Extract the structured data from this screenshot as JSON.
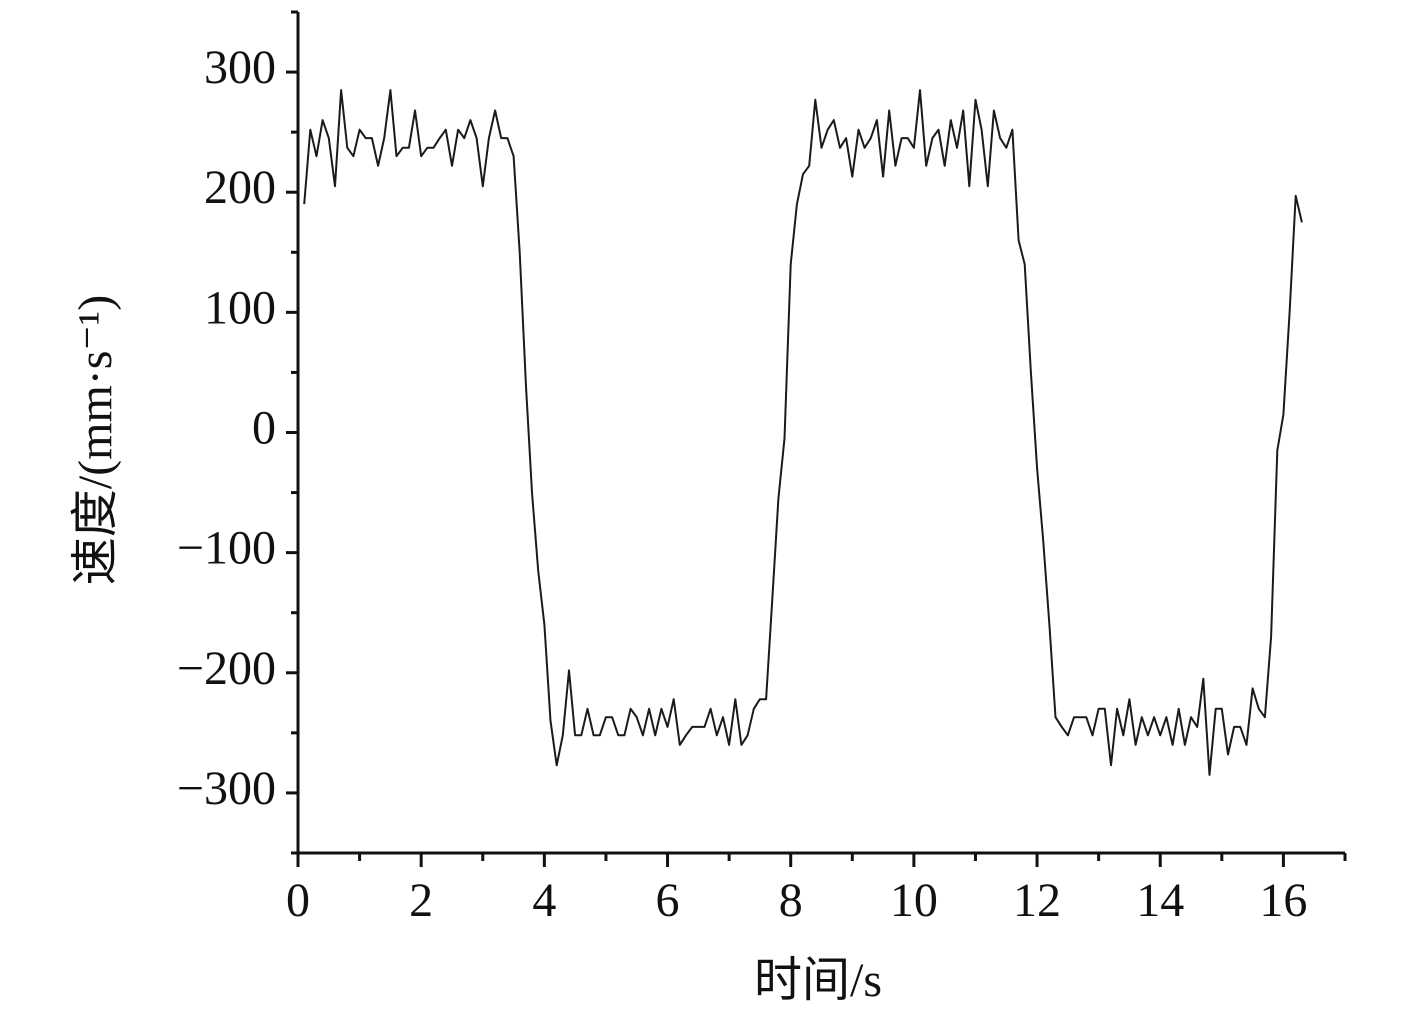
{
  "chart_data": {
    "type": "line",
    "xlabel": "时间/s",
    "ylabel": "速度/(mm·s⁻¹)",
    "xlim": [
      0,
      17
    ],
    "ylim": [
      -350,
      350
    ],
    "xticks": [
      0,
      2,
      4,
      6,
      8,
      10,
      12,
      14,
      16
    ],
    "xminorticks": [
      1,
      3,
      5,
      7,
      9,
      11,
      13,
      15,
      17
    ],
    "yticks": [
      {
        "value": -300,
        "label": "−300"
      },
      {
        "value": -200,
        "label": "−200"
      },
      {
        "value": -100,
        "label": "−100"
      },
      0,
      100,
      200,
      300
    ],
    "yminorticks": [
      -350,
      -250,
      -150,
      -50,
      50,
      150,
      250,
      350
    ],
    "color": "#1a1a1a",
    "x": [
      0.1,
      0.2,
      0.3,
      0.4,
      0.5,
      0.6,
      0.7,
      0.8,
      0.9,
      1.0,
      1.1,
      1.2,
      1.3,
      1.4,
      1.5,
      1.6,
      1.7,
      1.8,
      1.9,
      2.0,
      2.1,
      2.2,
      2.3,
      2.4,
      2.5,
      2.6,
      2.7,
      2.8,
      2.9,
      3.0,
      3.1,
      3.2,
      3.3,
      3.4,
      3.5,
      3.6,
      3.7,
      3.8,
      3.9,
      4.0,
      4.1,
      4.2,
      4.3,
      4.4,
      4.5,
      4.6,
      4.7,
      4.8,
      4.9,
      5.0,
      5.1,
      5.2,
      5.3,
      5.4,
      5.5,
      5.6,
      5.7,
      5.8,
      5.9,
      6.0,
      6.1,
      6.2,
      6.3,
      6.4,
      6.5,
      6.6,
      6.7,
      6.8,
      6.9,
      7.0,
      7.1,
      7.2,
      7.3,
      7.4,
      7.5,
      7.6,
      7.7,
      7.8,
      7.9,
      8.0,
      8.1,
      8.2,
      8.3,
      8.4,
      8.5,
      8.6,
      8.7,
      8.8,
      8.9,
      9.0,
      9.1,
      9.2,
      9.3,
      9.4,
      9.5,
      9.6,
      9.7,
      9.8,
      9.9,
      10.0,
      10.1,
      10.2,
      10.3,
      10.4,
      10.5,
      10.6,
      10.7,
      10.8,
      10.9,
      11.0,
      11.1,
      11.2,
      11.3,
      11.4,
      11.5,
      11.6,
      11.7,
      11.8,
      11.9,
      12.0,
      12.1,
      12.2,
      12.3,
      12.4,
      12.5,
      12.6,
      12.7,
      12.8,
      12.9,
      13.0,
      13.1,
      13.2,
      13.3,
      13.4,
      13.5,
      13.6,
      13.7,
      13.8,
      13.9,
      14.0,
      14.1,
      14.2,
      14.3,
      14.4,
      14.5,
      14.6,
      14.7,
      14.8,
      14.9,
      15.0,
      15.1,
      15.2,
      15.3,
      15.4,
      15.5,
      15.6,
      15.7,
      15.8,
      15.9,
      16.0,
      16.1,
      16.2,
      16.3
    ],
    "values": [
      190,
      252,
      230,
      260,
      245,
      205,
      285,
      237,
      230,
      252,
      245,
      245,
      222,
      245,
      285,
      230,
      237,
      237,
      268,
      230,
      237,
      237,
      245,
      252,
      222,
      252,
      245,
      260,
      245,
      205,
      245,
      268,
      245,
      245,
      230,
      150,
      40,
      -50,
      -115,
      -160,
      -240,
      -277,
      -252,
      -198,
      -252,
      -252,
      -230,
      -252,
      -252,
      -237,
      -237,
      -252,
      -252,
      -230,
      -237,
      -252,
      -230,
      -252,
      -230,
      -245,
      -222,
      -260,
      -252,
      -245,
      -245,
      -245,
      -230,
      -252,
      -237,
      -260,
      -222,
      -260,
      -252,
      -230,
      -222,
      -222,
      -140,
      -55,
      -5,
      140,
      190,
      215,
      222,
      277,
      237,
      252,
      260,
      237,
      245,
      213,
      252,
      237,
      245,
      260,
      213,
      268,
      222,
      245,
      245,
      237,
      285,
      222,
      245,
      252,
      222,
      260,
      237,
      268,
      205,
      277,
      252,
      205,
      268,
      245,
      237,
      252,
      160,
      140,
      50,
      -30,
      -90,
      -160,
      -237,
      -245,
      -252,
      -237,
      -237,
      -237,
      -252,
      -230,
      -230,
      -277,
      -230,
      -252,
      -222,
      -260,
      -237,
      -252,
      -237,
      -252,
      -237,
      -260,
      -230,
      -260,
      -237,
      -245,
      -205,
      -285,
      -230,
      -230,
      -268,
      -245,
      -245,
      -260,
      -213,
      -230,
      -237,
      -170,
      -15,
      15,
      100,
      197,
      175
    ]
  }
}
